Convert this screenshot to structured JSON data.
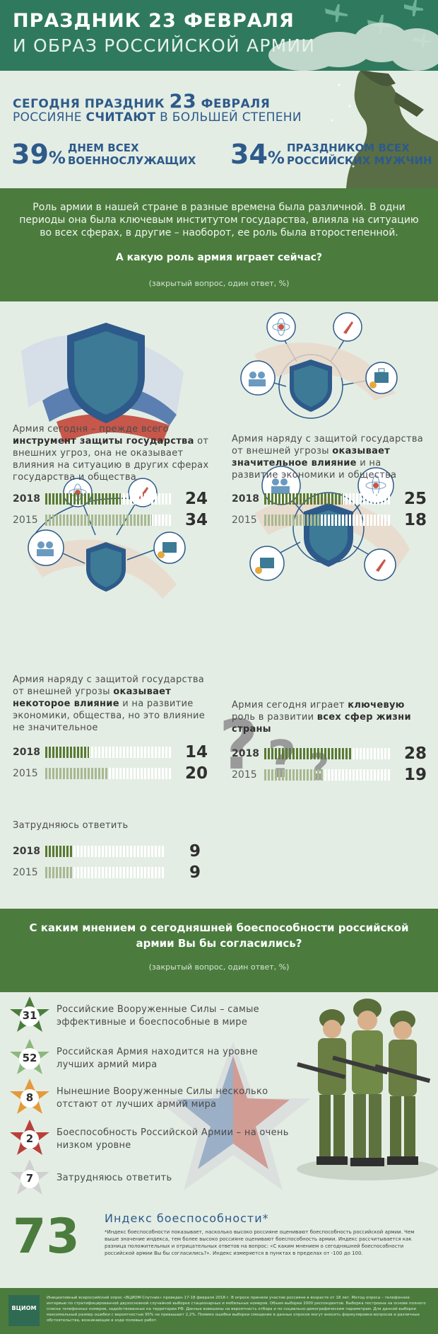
{
  "header": {
    "title": "ПРАЗДНИК 23 ФЕВРАЛЯ",
    "subtitle": "И ОБРАЗ РОССИЙСКОЙ АРМИИ"
  },
  "intro": {
    "line1_a": "СЕГОДНЯ ПРАЗДНИК",
    "line1_big": "23",
    "line1_b": "ФЕВРАЛЯ",
    "line2_a": "РОССИЯНЕ",
    "line2_bold": "СЧИТАЮТ",
    "line2_b": "В БОЛЬШЕЙ СТЕПЕНИ",
    "stats": [
      {
        "pct": "39",
        "pct_sign": "%",
        "label_1": "ДНЕМ ВСЕХ",
        "label_2": "ВОЕННОСЛУЖАЩИХ"
      },
      {
        "pct": "34",
        "pct_sign": "%",
        "label_1": "ПРАЗДНИКОМ ВСЕХ",
        "label_2": "РОССИЙСКИХ МУЖЧИН"
      }
    ]
  },
  "question1": {
    "text": "Роль армии в нашей стране в разные времена была различной. В одни периоды она была ключевым институтом государства, влияла на ситуацию во всех сферах, в другие – наоборот, ее роль была второстепенной.",
    "question": "А какую роль армия играет сейчас?",
    "note": "(закрытый вопрос, один ответ, %)"
  },
  "options": [
    {
      "text_parts": [
        "Армия сегодня – прежде всего ",
        "инструмент защиты государства",
        " от внешних угроз, она не оказывает влияния на ситуацию в других сферах государства и общества"
      ],
      "rows": [
        {
          "year": "2018",
          "value": 24
        },
        {
          "year": "2015",
          "value": 34
        }
      ]
    },
    {
      "text_parts": [
        "Армия наряду с защитой государства от внешней угрозы ",
        "оказывает значительное влияние",
        " и на развитие экономики и общества"
      ],
      "rows": [
        {
          "year": "2018",
          "value": 25
        },
        {
          "year": "2015",
          "value": 18
        }
      ]
    },
    {
      "text_parts": [
        "Армия наряду с защитой государства от внешней угрозы ",
        "оказывает некоторое влияние",
        " и на развитие экономики, общества, но это влияние не значительное"
      ],
      "rows": [
        {
          "year": "2018",
          "value": 14
        },
        {
          "year": "2015",
          "value": 20
        }
      ]
    },
    {
      "text_parts": [
        "Армия сегодня играет ",
        "ключевую",
        " роль в развитии ",
        "всех сфер жизни страны"
      ],
      "rows": [
        {
          "year": "2018",
          "value": 28
        },
        {
          "year": "2015",
          "value": 19
        }
      ]
    },
    {
      "text_parts": [
        "Затрудняюсь ответить"
      ],
      "rows": [
        {
          "year": "2018",
          "value": 9
        },
        {
          "year": "2015",
          "value": 9
        }
      ]
    }
  ],
  "question2": {
    "question": "С каким мнением о сегодняшней боеспособности российской армии Вы бы согласились?",
    "note": "(закрытый вопрос, один ответ, %)",
    "items": [
      {
        "value": "31",
        "label": "Российские Вооруженные Силы – самые эффективные и боеспособные в мире",
        "color": "#4b7c3e"
      },
      {
        "value": "52",
        "label": "Российская Армия находится на уровне лучших армий мира",
        "color": "#6f9a63"
      },
      {
        "value": "8",
        "label": "Нынешние Вооруженные Силы несколько отстают от лучших армий мира",
        "color": "#e49a3a"
      },
      {
        "value": "2",
        "label": "Боеспособность Российской Армии – на очень низком уровне",
        "color": "#b8403a"
      },
      {
        "value": "7",
        "label": "Затрудняюсь ответить",
        "color": "#bfbfbf"
      }
    ]
  },
  "index": {
    "value": "73",
    "title": "Индекс боеспособности*",
    "description": "*Индекс боеспособности показывает, насколько высоко россияне оценивают боеспособность российской армии. Чем выше значение индекса, тем более высоко россияне оценивают боеспособность армии. Индекс рассчитывается как разница положительных и отрицательных ответов на вопрос: «С каким мнением о сегодняшней боеспособности российской армии Вы бы согласились?». Индекс измеряется в пунктах в пределах от -100 до 100."
  },
  "footer": {
    "logo": "ВЦИОМ",
    "text": "Инициативный всероссийский опрос «ВЦИОМ-Спутник» проведен 17-18 февраля 2018 г. В опросе приняли участие россияне в возрасте от 18 лет. Метод опроса – телефонное интервью по стратифицированной двухосновной случайной выборке стационарных и мобильных номеров. Объем выборки 2000 респондентов. Выборка построена на основе полного списка телефонных номеров, задействованных на территории РФ. Данные взвешены на вероятность отбора и по социально-демографическим параметрам. Для данной выборки максимальный размер ошибки с вероятностью 95% не превышает 2,2%. Помимо ошибки выборки смещение в данных опросов могут вносить формулировки вопросов и различные обстоятельства, возникающие в ходе полевых работ."
  },
  "colors": {
    "header_green": "#2f7a5e",
    "band_green": "#4b7c3e",
    "accent_blue": "#2d5a8a",
    "background": "#e4ede4"
  }
}
